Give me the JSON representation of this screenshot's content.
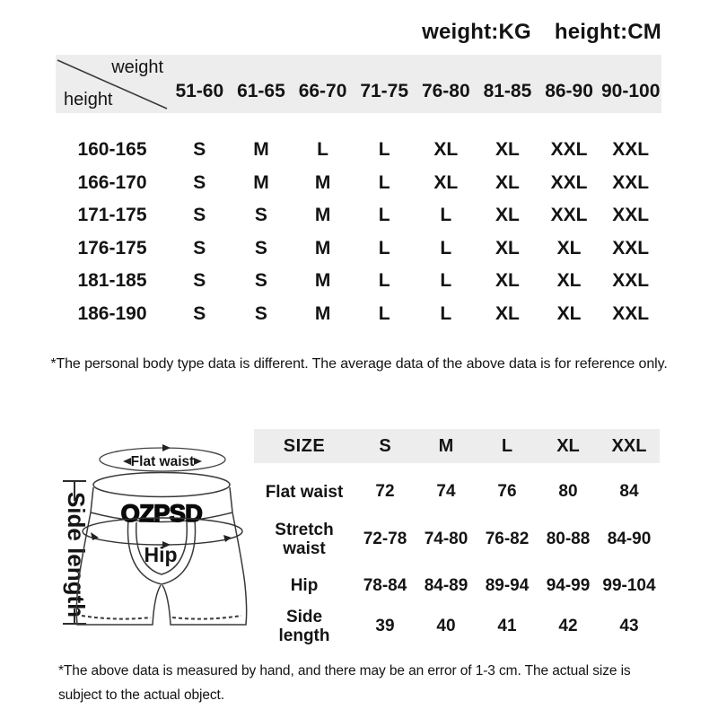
{
  "units_header": {
    "weight_unit": "weight:KG",
    "height_unit": "height:CM"
  },
  "size_matrix": {
    "corner": {
      "top_label": "weight",
      "bottom_label": "height"
    },
    "weight_columns": [
      "51-60",
      "61-65",
      "66-70",
      "71-75",
      "76-80",
      "81-85",
      "86-90",
      "90-100"
    ],
    "rows": [
      {
        "height": "160-165",
        "sizes": [
          "S",
          "M",
          "L",
          "L",
          "XL",
          "XL",
          "XXL",
          "XXL"
        ]
      },
      {
        "height": "166-170",
        "sizes": [
          "S",
          "M",
          "M",
          "L",
          "XL",
          "XL",
          "XXL",
          "XXL"
        ]
      },
      {
        "height": "171-175",
        "sizes": [
          "S",
          "S",
          "M",
          "L",
          "L",
          "XL",
          "XXL",
          "XXL"
        ]
      },
      {
        "height": "176-175",
        "sizes": [
          "S",
          "S",
          "M",
          "L",
          "L",
          "XL",
          "XL",
          "XXL"
        ]
      },
      {
        "height": "181-185",
        "sizes": [
          "S",
          "S",
          "M",
          "L",
          "L",
          "XL",
          "XL",
          "XXL"
        ]
      },
      {
        "height": "186-190",
        "sizes": [
          "S",
          "S",
          "M",
          "L",
          "L",
          "XL",
          "XL",
          "XXL"
        ]
      }
    ],
    "footnote": "*The personal body type data is different. The average data of the above data is for reference only."
  },
  "diagram": {
    "brand": "OZPSD",
    "labels": {
      "flat_waist": "Flat waist",
      "hip": "Hip",
      "side_length": "Side length"
    }
  },
  "measurements_table": {
    "header": [
      "SIZE",
      "S",
      "M",
      "L",
      "XL",
      "XXL"
    ],
    "rows": [
      {
        "label": "Flat waist",
        "values": [
          "72",
          "74",
          "76",
          "80",
          "84"
        ]
      },
      {
        "label": "Stretch waist",
        "values": [
          "72-78",
          "74-80",
          "76-82",
          "80-88",
          "84-90"
        ]
      },
      {
        "label": "Hip",
        "values": [
          "78-84",
          "84-89",
          "89-94",
          "94-99",
          "99-104"
        ]
      },
      {
        "label": "Side length",
        "values": [
          "39",
          "40",
          "41",
          "42",
          "43"
        ]
      }
    ],
    "footnote": "*The above data is measured by hand, and there may be an error of 1-3 cm. The actual size is subject to the actual object."
  },
  "colors": {
    "header_band": "#ededed",
    "text": "#141414",
    "line": "#3a3a3a"
  }
}
